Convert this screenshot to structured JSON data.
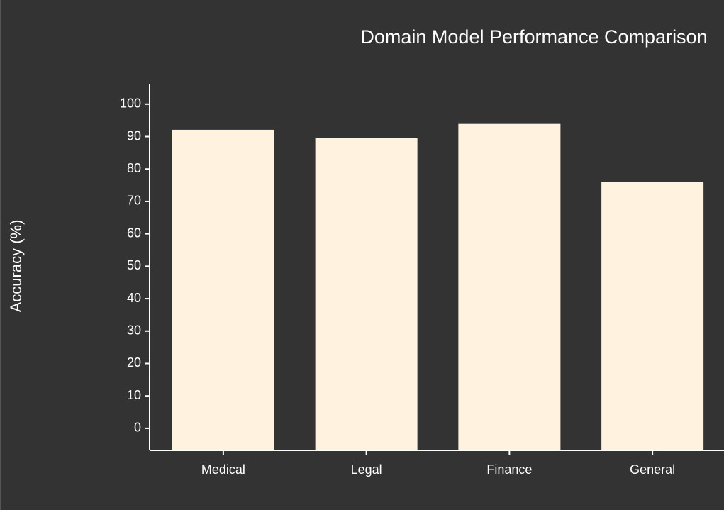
{
  "chart_data": {
    "type": "bar",
    "title": "Domain Model Performance Comparison",
    "y_label": "Accuracy (%)",
    "categories": [
      "Medical",
      "Legal",
      "Finance",
      "General"
    ],
    "values": [
      92.1,
      89.5,
      93.9,
      75.9
    ],
    "color": "#fff3e0",
    "ylim": [
      -6.8,
      106.3
    ],
    "yticks": [
      0,
      10,
      20,
      30,
      40,
      50,
      60,
      70,
      80,
      90,
      100
    ]
  }
}
